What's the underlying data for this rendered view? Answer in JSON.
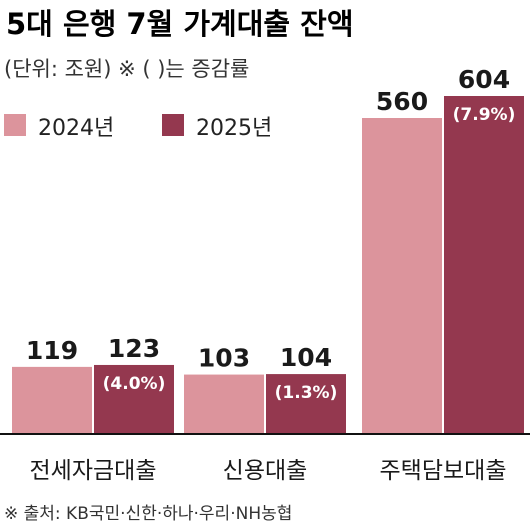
{
  "chart_data": {
    "type": "bar",
    "title": "5대 은행 7월 가계대출 잔액",
    "subtitle": "(단위: 조원) ※ ( )는 증감률",
    "categories": [
      "전세자금대출",
      "신용대출",
      "주택담보대출"
    ],
    "series": [
      {
        "name": "2024년",
        "values": [
          119,
          103,
          560
        ],
        "color": "#dc949c"
      },
      {
        "name": "2025년",
        "values": [
          123,
          104,
          604
        ],
        "color": "#94384f",
        "change_labels": [
          "(4.0%)",
          "(1.3%)",
          "(7.9%)"
        ]
      }
    ],
    "value_labels": [
      [
        "119",
        "103",
        "560"
      ],
      [
        "123",
        "104",
        "604"
      ]
    ],
    "scale": "broken",
    "legend_position": "top-left",
    "grid": false,
    "source": "※ 출처: KB국민·신한·하나·우리·NH농협"
  }
}
